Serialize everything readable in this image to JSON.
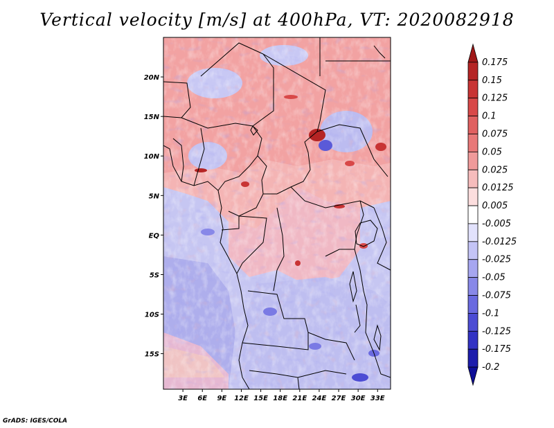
{
  "title": "Vertical velocity [m/s] at 400hPa, VT: 2020082918",
  "credit": "GrADS: IGES/COLA",
  "map": {
    "lon_range": [
      0,
      35
    ],
    "lat_range": [
      -19.5,
      25
    ],
    "lat_labels": [
      "20N",
      "15N",
      "10N",
      "5N",
      "EQ",
      "5S",
      "10S",
      "15S"
    ],
    "lat_values": [
      20,
      15,
      10,
      5,
      0,
      -5,
      -10,
      -15
    ],
    "lon_labels": [
      "3E",
      "6E",
      "9E",
      "12E",
      "15E",
      "18E",
      "21E",
      "24E",
      "27E",
      "30E",
      "33E"
    ],
    "lon_values": [
      3,
      6,
      9,
      12,
      15,
      18,
      21,
      24,
      27,
      30,
      33
    ]
  },
  "colorbar": {
    "labels": [
      "0.175",
      "0.15",
      "0.125",
      "0.1",
      "0.075",
      "0.05",
      "0.025",
      "0.0125",
      "0.005",
      "-0.005",
      "-0.0125",
      "-0.025",
      "-0.05",
      "-0.075",
      "-0.1",
      "-0.125",
      "-0.175",
      "-0.2"
    ],
    "colors": [
      "#a01818",
      "#b52424",
      "#c83434",
      "#d84848",
      "#e06060",
      "#e87878",
      "#f09a9a",
      "#f6bcbc",
      "#fcdede",
      "#ffffff",
      "#e2e2fc",
      "#c4c4f6",
      "#a6a6f0",
      "#8888e8",
      "#6a6ae0",
      "#4c4cd4",
      "#3232c4",
      "#1c1cac",
      "#0e0e98"
    ]
  },
  "colors": {
    "border": "#000000",
    "positive": "#f2a6a6",
    "negative": "#b4b4f0"
  }
}
